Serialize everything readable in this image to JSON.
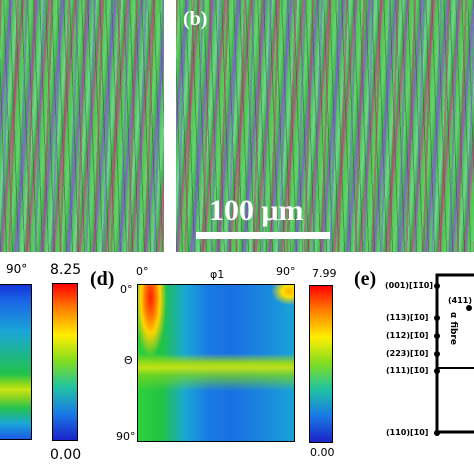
{
  "top_panels": {
    "panel_b_label": "(b)",
    "scale_bar_text": "100 μm"
  },
  "odf_left": {
    "top_right_label": "90°",
    "colorbar_max": "8.25",
    "colorbar_min": "0.00"
  },
  "odf_d": {
    "panel_label": "(d)",
    "x_start": "0°",
    "x_axis_label": "φ1",
    "x_end": "90°",
    "y_top": "0°",
    "y_axis_label": "Θ",
    "y_bottom": "90°",
    "colorbar_max": "7.99",
    "colorbar_min": "0.00"
  },
  "fibre": {
    "panel_label": "(e)",
    "fibre_name": "α fibre",
    "corner_label": "(411)",
    "orientations": [
      "(001)[1̄1̄0]",
      "(113)[1̄0]",
      "(112)[1̄0]",
      "(223)[1̄0]",
      "(111)[1̄0]",
      "(110)[1̄0]"
    ]
  }
}
